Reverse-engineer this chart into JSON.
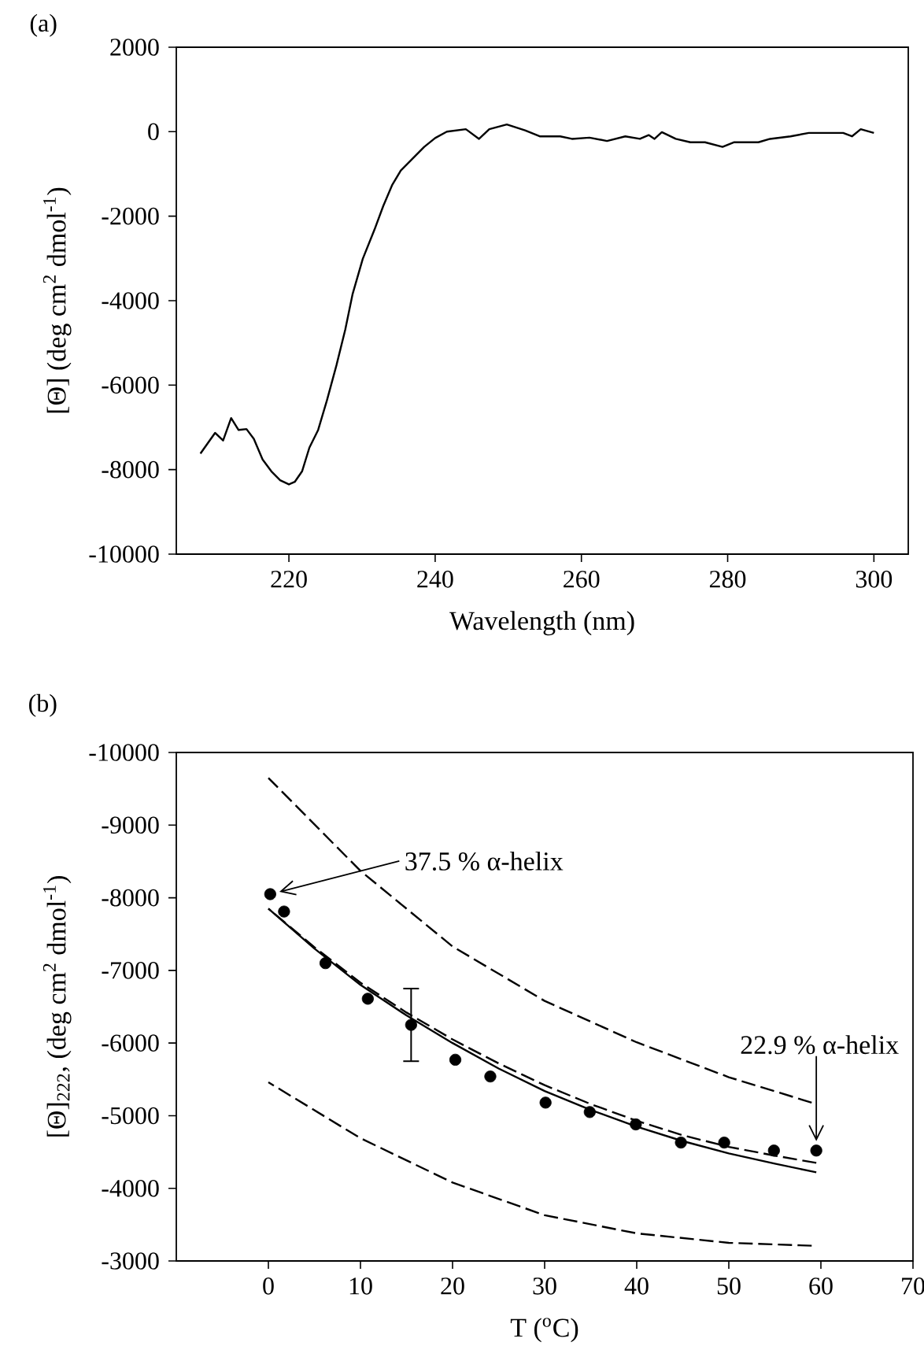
{
  "chart_data": [
    {
      "type": "line",
      "title": "(a)",
      "xlabel": "Wavelength (nm)",
      "ylabel": "[Θ] (deg cm$^{2}$ dmol$^{-1}$)",
      "xlim": [
        204.6,
        304.7
      ],
      "ylim": [
        -10000,
        2000
      ],
      "xticks": [
        220,
        240,
        260,
        280,
        300
      ],
      "yticks": [
        -10000,
        -8000,
        -6000,
        -4000,
        -2000,
        0,
        2000
      ],
      "series": [
        {
          "color": "#000000",
          "line_style": "solid",
          "x": [
            207.9,
            209.9,
            211,
            212.1,
            213.1,
            214.2,
            215.2,
            216.4,
            217.6,
            218.8,
            220,
            220.8,
            221.8,
            222.8,
            224,
            225.2,
            226.5,
            227.7,
            228.7,
            230.1,
            231.7,
            232.9,
            234.1,
            235.3,
            236.9,
            238.5,
            240,
            241.6,
            244.2,
            246,
            247.4,
            249.8,
            252.3,
            254.3,
            257.1,
            258.7,
            261.1,
            263.5,
            266,
            268,
            269.2,
            270,
            271,
            272.9,
            274.9,
            276.9,
            279.3,
            280.9,
            284.2,
            285.8,
            288.6,
            291.1,
            295.8,
            297,
            298.2,
            300
          ],
          "values": [
            -7620,
            -7130,
            -7310,
            -6780,
            -7060,
            -7040,
            -7270,
            -7760,
            -8040,
            -8250,
            -8350,
            -8290,
            -8040,
            -7480,
            -7060,
            -6360,
            -5530,
            -4690,
            -3850,
            -3010,
            -2320,
            -1760,
            -1270,
            -920,
            -640,
            -360,
            -150,
            0,
            60,
            -170,
            60,
            170,
            30,
            -110,
            -110,
            -170,
            -140,
            -220,
            -110,
            -170,
            -80,
            -170,
            -10,
            -170,
            -250,
            -250,
            -360,
            -250,
            -250,
            -170,
            -110,
            -30,
            -30,
            -110,
            60,
            -30
          ]
        }
      ]
    },
    {
      "type": "line",
      "title": "(b)",
      "xlabel": "T ($^{o}$C)",
      "ylabel": "[Θ]$_{222}$, (deg cm$^{2}$ dmol$^{-1}$)",
      "xlim": [
        -10,
        70
      ],
      "ylim": [
        -3000,
        -10000
      ],
      "xticks": [
        0,
        10,
        20,
        30,
        40,
        50,
        60,
        70
      ],
      "yticks": [
        -10000,
        -9000,
        -8000,
        -7000,
        -6000,
        -5000,
        -4000,
        -3000
      ],
      "annotations": [
        {
          "text": "37.5 % α-helix",
          "x": 0.2,
          "y": -8050
        },
        {
          "text": "22.9 % α-helix",
          "x": 59.5,
          "y": -4520
        }
      ],
      "series": [
        {
          "type": "scatter",
          "marker": "circle",
          "color": "#000000",
          "x": [
            0.2,
            1.7,
            6.2,
            10.8,
            15.5,
            20.3,
            24.1,
            30.1,
            34.9,
            39.9,
            44.8,
            49.5,
            54.9,
            59.5
          ],
          "values": [
            -8050,
            -7810,
            -7100,
            -6610,
            -6250,
            -5770,
            -5540,
            -5180,
            -5050,
            -4880,
            -4630,
            -4630,
            -4520,
            -4520
          ],
          "errors": [
            null,
            null,
            null,
            null,
            500,
            null,
            null,
            null,
            null,
            null,
            null,
            null,
            null,
            null
          ]
        },
        {
          "color": "#000000",
          "line_style": "solid",
          "x": [
            0,
            5,
            10,
            15,
            20,
            25,
            30,
            35,
            40,
            45,
            50,
            55,
            59.5
          ],
          "values": [
            -7850,
            -7300,
            -6800,
            -6380,
            -6000,
            -5650,
            -5340,
            -5080,
            -4850,
            -4650,
            -4480,
            -4340,
            -4220
          ]
        },
        {
          "color": "#000000",
          "line_style": "dashed",
          "x": [
            0,
            5,
            10,
            15,
            20,
            25,
            30,
            35,
            40,
            45,
            50,
            55,
            59.5
          ],
          "values": [
            -7850,
            -7320,
            -6830,
            -6420,
            -6050,
            -5720,
            -5420,
            -5160,
            -4930,
            -4730,
            -4570,
            -4450,
            -4350
          ]
        },
        {
          "color": "#000000",
          "line_style": "dashed",
          "x": [
            0,
            10,
            20,
            30,
            40,
            50,
            59
          ],
          "values": [
            -9650,
            -8370,
            -7330,
            -6580,
            -6010,
            -5530,
            -5180
          ]
        },
        {
          "color": "#000000",
          "line_style": "dashed",
          "x": [
            0,
            10,
            20,
            30,
            40,
            50,
            59
          ],
          "values": [
            -5460,
            -4690,
            -4080,
            -3630,
            -3380,
            -3250,
            -3210
          ]
        }
      ]
    }
  ]
}
